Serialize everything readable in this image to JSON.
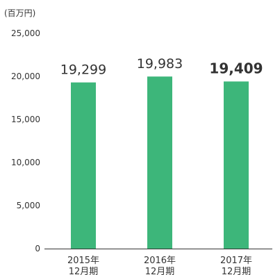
{
  "unit_label": "(百万円)",
  "colors": {
    "bar": "#3db67a",
    "axis": "#333333",
    "text": "#333333"
  },
  "chart_data": {
    "type": "bar",
    "title": "",
    "xlabel": "",
    "ylabel": "",
    "categories": [
      "2015年 12月期",
      "2016年 12月期",
      "2017年 12月期"
    ],
    "values": [
      19299,
      19983,
      19409
    ],
    "value_labels": [
      "19,299",
      "19,983",
      "19,409"
    ],
    "highlight_index": 2,
    "ylim": [
      0,
      25000
    ],
    "yticks": [
      0,
      5000,
      10000,
      15000,
      20000,
      25000
    ],
    "ytick_labels": [
      "0",
      "5,000",
      "10,000",
      "15,000",
      "20,000",
      "25,000"
    ],
    "grid": false,
    "legend": "none"
  }
}
